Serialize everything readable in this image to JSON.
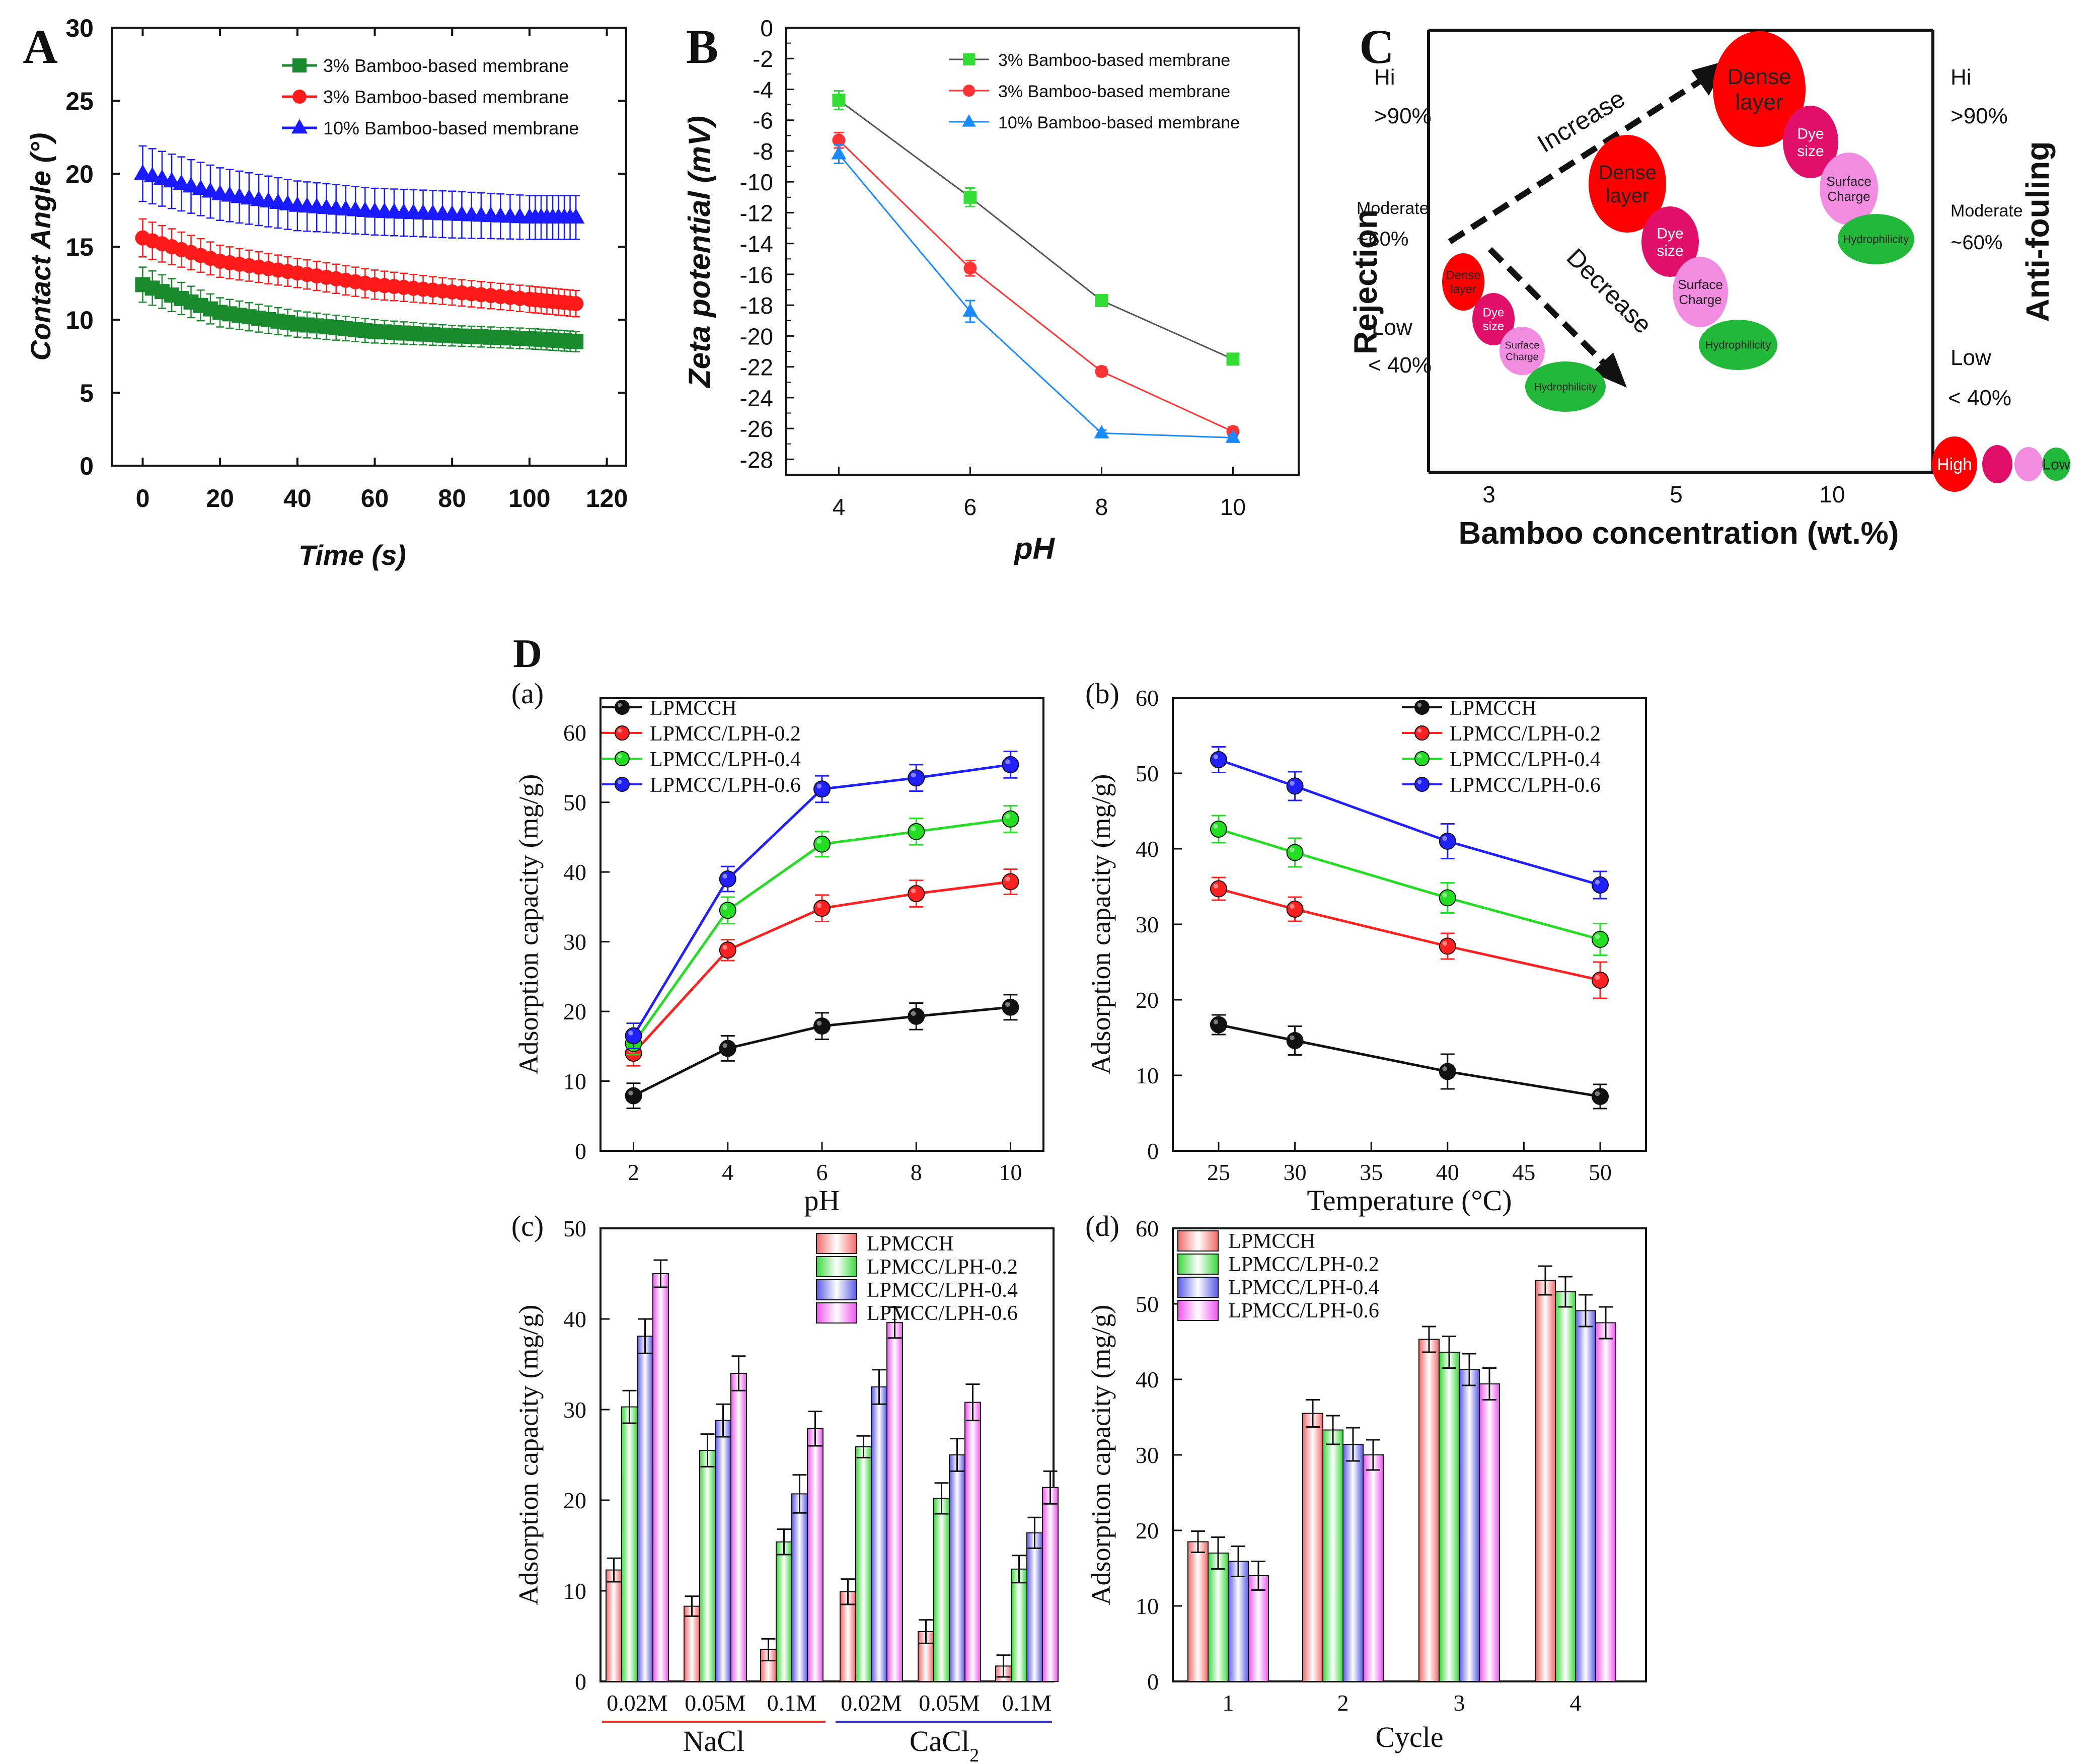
{
  "panel_labels": {
    "A": "A",
    "B": "B",
    "C": "C",
    "D": "D",
    "a": "(a)",
    "b": "(b)",
    "c": "(c)",
    "d": "(d)"
  },
  "chart_data": [
    {
      "id": "A",
      "type": "line",
      "xlabel": "Time (s)",
      "ylabel": "Contact Angle (°)",
      "xlim": [
        -8,
        125
      ],
      "ylim": [
        0,
        30
      ],
      "xticks": [
        0,
        20,
        40,
        60,
        80,
        100,
        120
      ],
      "yticks": [
        0,
        5,
        10,
        15,
        20,
        25,
        30
      ],
      "series": [
        {
          "name": "3% Bamboo-based membrane",
          "color": "#1a8a2e",
          "marker": "square",
          "x": [
            0,
            20,
            40,
            60,
            80,
            100,
            112
          ],
          "values": [
            12.4,
            10.5,
            9.7,
            9.2,
            8.9,
            8.7,
            8.5
          ],
          "err": [
            1.2,
            1.0,
            0.9,
            0.8,
            0.7,
            0.7,
            0.7
          ]
        },
        {
          "name": "3% Bamboo-based membrane",
          "color": "#ff1a1a",
          "marker": "circle",
          "x": [
            0,
            20,
            40,
            60,
            80,
            100,
            112
          ],
          "values": [
            15.6,
            14.0,
            13.2,
            12.4,
            11.9,
            11.4,
            11.1
          ],
          "err": [
            1.3,
            1.1,
            1.0,
            1.0,
            0.9,
            0.9,
            0.9
          ]
        },
        {
          "name": "10% Bamboo-based membrane",
          "color": "#1a1aff",
          "marker": "triangle",
          "x": [
            0,
            20,
            40,
            60,
            80,
            100,
            112
          ],
          "values": [
            20.0,
            18.6,
            17.8,
            17.4,
            17.2,
            17.0,
            17.0
          ],
          "err": [
            1.9,
            1.8,
            1.7,
            1.6,
            1.6,
            1.5,
            1.5
          ]
        }
      ]
    },
    {
      "id": "B",
      "type": "line",
      "xlabel": "pH",
      "ylabel": "Zeta potential  (mV)",
      "xlim": [
        3.2,
        11
      ],
      "ylim": [
        -29,
        0
      ],
      "xticks": [
        4,
        6,
        8,
        10
      ],
      "yticks": [
        0,
        -2,
        -4,
        -6,
        -8,
        -10,
        -12,
        -14,
        -16,
        -18,
        -20,
        -22,
        -24,
        -26,
        -28
      ],
      "series": [
        {
          "name": "3% Bamboo-based membrane",
          "color": "#33dd33",
          "marker": "square",
          "x": [
            4,
            6,
            8,
            10
          ],
          "values": [
            -4.7,
            -11.0,
            -17.7,
            -21.5
          ],
          "err": [
            0.6,
            0.6,
            0.3,
            0.3
          ]
        },
        {
          "name": "3% Bamboo-based membrane",
          "color": "#ff3333",
          "marker": "circle",
          "x": [
            4,
            6,
            8,
            10
          ],
          "values": [
            -7.3,
            -15.6,
            -22.3,
            -26.2
          ],
          "err": [
            0.5,
            0.5,
            0.3,
            0.3
          ]
        },
        {
          "name": "10% Bamboo-based membrane",
          "color": "#1a8aff",
          "marker": "triangle",
          "x": [
            4,
            6,
            8,
            10
          ],
          "values": [
            -8.2,
            -18.4,
            -26.3,
            -26.6
          ],
          "err": [
            0.6,
            0.7,
            0.2,
            0.2
          ]
        }
      ]
    },
    {
      "id": "C",
      "type": "diagram",
      "xlabel": "Bamboo concentration (wt.%)",
      "left_axis": "Rejection",
      "right_axis": "Anti-fouling",
      "xticks": [
        "3",
        "5",
        "10"
      ],
      "left_levels": {
        "hi": "Hi",
        ">90": ">90%",
        "mod": "Moderate",
        "60": "~60%",
        "low": "Low",
        "40": "< 40%"
      },
      "right_levels": {
        "hi": "Hi",
        ">90": ">90%",
        "mod": "Moderate",
        "60": "~60%",
        "low": "Low",
        "40": "< 40%"
      },
      "arrows": {
        "increase": "Increase",
        "decrease": "Decrease"
      },
      "bubbles": {
        "dense_layer": "Dense layer",
        "dense": "Dense",
        "layer": "layer",
        "dye": "Dye",
        "size": "size",
        "surface": "Surface",
        "charge": "Charge",
        "hydrophilicity": "Hydrophilicity"
      },
      "legend_scale": {
        "high": "High",
        "low": "Low"
      },
      "colors": {
        "dense": "#ff0000",
        "dye": "#e0106a",
        "surface": "#f28ce0",
        "hydro": "#22b83a"
      }
    },
    {
      "id": "Da",
      "type": "line",
      "xlabel": "pH",
      "ylabel": "Adsorption capacity (mg/g)",
      "xlim": [
        1.3,
        10.7
      ],
      "ylim": [
        0,
        65
      ],
      "xticks": [
        2,
        4,
        6,
        8,
        10
      ],
      "yticks": [
        0,
        10,
        20,
        30,
        40,
        50,
        60
      ],
      "series": [
        {
          "name": "LPMCCH",
          "color": "#111111",
          "x": [
            2,
            4,
            6,
            8,
            10
          ],
          "values": [
            7.9,
            14.7,
            17.9,
            19.3,
            20.6
          ],
          "err": [
            1.8,
            1.8,
            1.9,
            1.9,
            1.8
          ]
        },
        {
          "name": "LPMCC/LPH-0.2",
          "color": "#ff2020",
          "x": [
            2,
            4,
            6,
            8,
            10
          ],
          "values": [
            14.0,
            28.8,
            34.8,
            36.9,
            38.6
          ],
          "err": [
            1.8,
            1.5,
            1.9,
            1.9,
            1.8
          ]
        },
        {
          "name": "LPMCC/LPH-0.4",
          "color": "#22dd22",
          "x": [
            2,
            4,
            6,
            8,
            10
          ],
          "values": [
            15.4,
            34.5,
            44.0,
            45.8,
            47.6
          ],
          "err": [
            1.6,
            1.9,
            1.8,
            1.9,
            1.9
          ]
        },
        {
          "name": "LPMCC/LPH-0.6",
          "color": "#2020ff",
          "x": [
            2,
            4,
            6,
            8,
            10
          ],
          "values": [
            16.5,
            39.0,
            51.9,
            53.5,
            55.4
          ],
          "err": [
            1.8,
            1.8,
            1.9,
            1.9,
            1.9
          ]
        }
      ]
    },
    {
      "id": "Db",
      "type": "line",
      "xlabel": "Temperature (°C)",
      "ylabel": "Adsorption capacity (mg/g)",
      "xlim": [
        22,
        53
      ],
      "ylim": [
        0,
        60
      ],
      "xticks": [
        25,
        30,
        35,
        40,
        45,
        50
      ],
      "yticks": [
        0,
        10,
        20,
        30,
        40,
        50,
        60
      ],
      "series": [
        {
          "name": "LPMCCH",
          "color": "#111111",
          "x": [
            25,
            30,
            40,
            50
          ],
          "values": [
            16.7,
            14.6,
            10.5,
            7.2
          ],
          "err": [
            1.3,
            1.9,
            2.3,
            1.6
          ]
        },
        {
          "name": "LPMCC/LPH-0.2",
          "color": "#ff2020",
          "x": [
            25,
            30,
            40,
            50
          ],
          "values": [
            34.7,
            32.0,
            27.1,
            22.6
          ],
          "err": [
            1.5,
            1.6,
            1.7,
            2.4
          ]
        },
        {
          "name": "LPMCC/LPH-0.4",
          "color": "#22dd22",
          "x": [
            25,
            30,
            40,
            50
          ],
          "values": [
            42.6,
            39.5,
            33.5,
            28.0
          ],
          "err": [
            1.8,
            1.9,
            2.0,
            2.1
          ]
        },
        {
          "name": "LPMCC/LPH-0.6",
          "color": "#2020ff",
          "x": [
            25,
            30,
            40,
            50
          ],
          "values": [
            51.8,
            48.3,
            41.0,
            35.2
          ],
          "err": [
            1.7,
            1.9,
            2.3,
            1.8
          ]
        }
      ]
    },
    {
      "id": "Dc",
      "type": "bar",
      "ylabel": "Adsorption capacity (mg/g)",
      "ylim": [
        0,
        50
      ],
      "yticks": [
        0,
        10,
        20,
        30,
        40,
        50
      ],
      "categories": [
        "0.02M",
        "0.05M",
        "0.1M",
        "0.02M",
        "0.05M",
        "0.1M"
      ],
      "groups": [
        "NaCl",
        "CaCl2"
      ],
      "series": [
        {
          "name": "LPMCCH",
          "color": "#f26a6a",
          "values": [
            12.3,
            8.3,
            3.5,
            9.9,
            5.5,
            1.7
          ],
          "err": [
            1.3,
            1.1,
            1.2,
            1.4,
            1.3,
            1.2
          ]
        },
        {
          "name": "LPMCC/LPH-0.2",
          "color": "#3ad93a",
          "values": [
            30.3,
            25.5,
            15.4,
            25.9,
            20.2,
            12.4
          ],
          "err": [
            1.8,
            1.8,
            1.4,
            1.2,
            1.7,
            1.5
          ]
        },
        {
          "name": "LPMCC/LPH-0.4",
          "color": "#5a5ae6",
          "values": [
            38.1,
            28.8,
            20.7,
            32.5,
            25.0,
            16.4
          ],
          "err": [
            1.9,
            1.8,
            2.1,
            1.9,
            1.8,
            1.7
          ]
        },
        {
          "name": "LPMCC/LPH-0.6",
          "color": "#ee55ee",
          "values": [
            45.0,
            34.0,
            27.9,
            39.6,
            30.8,
            21.4
          ],
          "err": [
            1.5,
            1.9,
            1.9,
            1.7,
            2.0,
            1.8
          ]
        }
      ]
    },
    {
      "id": "Dd",
      "type": "bar",
      "xlabel": "Cycle",
      "ylabel": "Adsorption capacity (mg/g)",
      "ylim": [
        0,
        60
      ],
      "yticks": [
        0,
        10,
        20,
        30,
        40,
        50,
        60
      ],
      "categories": [
        "1",
        "2",
        "3",
        "4"
      ],
      "series": [
        {
          "name": "LPMCCH",
          "color": "#f26a6a",
          "values": [
            18.5,
            35.5,
            45.3,
            53.1
          ],
          "err": [
            1.4,
            1.8,
            1.7,
            1.9
          ]
        },
        {
          "name": "LPMCC/LPH-0.2",
          "color": "#3ad93a",
          "values": [
            17.0,
            33.3,
            43.6,
            51.6
          ],
          "err": [
            2.1,
            1.9,
            2.1,
            2.0
          ]
        },
        {
          "name": "LPMCC/LPH-0.4",
          "color": "#5a5ae6",
          "values": [
            15.9,
            31.4,
            41.3,
            49.1
          ],
          "err": [
            2.0,
            2.2,
            2.1,
            2.1
          ]
        },
        {
          "name": "LPMCC/LPH-0.6",
          "color": "#ee55ee",
          "values": [
            14.0,
            30.0,
            39.4,
            47.5
          ],
          "err": [
            1.9,
            2.0,
            2.1,
            2.1
          ]
        }
      ]
    }
  ]
}
